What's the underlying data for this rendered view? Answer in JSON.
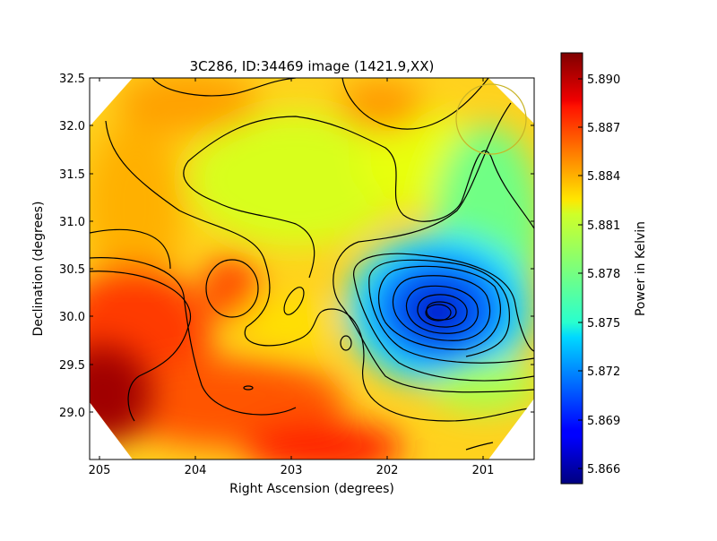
{
  "chart_data": {
    "type": "heatmap",
    "title": "3C286, ID:34469 image (1421.9,XX)",
    "xlabel": "Right Ascension (degrees)",
    "ylabel": "Declination (degrees)",
    "xlim": [
      205.1,
      200.48
    ],
    "ylim": [
      28.5,
      32.5
    ],
    "x_ticks": [
      205,
      204,
      203,
      202,
      201
    ],
    "y_ticks": [
      29.0,
      29.5,
      30.0,
      30.5,
      31.0,
      31.5,
      32.0,
      32.5
    ],
    "x_tick_labels": [
      "205",
      "204",
      "203",
      "202",
      "201"
    ],
    "y_tick_labels": [
      "29.0",
      "29.5",
      "30.0",
      "30.5",
      "31.0",
      "31.5",
      "32.0",
      "32.5"
    ],
    "grid": false,
    "colorbar": {
      "label": "Power in Kelvin",
      "range": [
        5.8652,
        5.8917
      ],
      "ticks": [
        5.866,
        5.869,
        5.872,
        5.875,
        5.878,
        5.881,
        5.884,
        5.887,
        5.89
      ],
      "tick_labels": [
        "5.866",
        "5.869",
        "5.872",
        "5.875",
        "5.878",
        "5.881",
        "5.884",
        "5.887",
        "5.890"
      ],
      "colormap": "jet"
    },
    "features": [
      {
        "type": "minimum",
        "ra": 201.45,
        "dec": 30.03,
        "value": 5.8655
      },
      {
        "type": "maximum",
        "ra": 204.9,
        "dec": 29.1,
        "value": 5.8905
      },
      {
        "type": "local_maximum",
        "ra": 203.6,
        "dec": 30.28,
        "value": 5.886
      },
      {
        "type": "local_maximum",
        "ra": 201.9,
        "dec": 32.2,
        "value": 5.886
      },
      {
        "type": "local_maximum",
        "ra": 202.7,
        "dec": 28.7,
        "value": 5.887
      }
    ],
    "beam_marker": {
      "ra": 200.92,
      "dec": 32.03,
      "radius_deg": 0.36,
      "color": "#c8b428"
    }
  }
}
